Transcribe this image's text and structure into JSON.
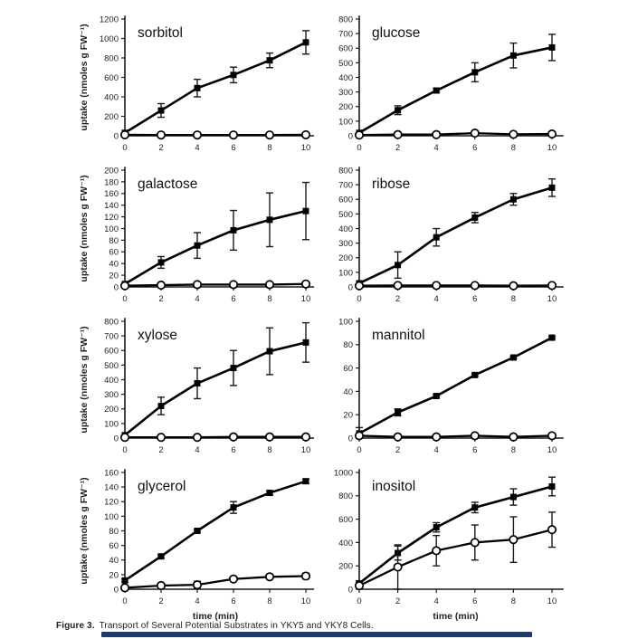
{
  "figure": {
    "caption_label": "Figure 3.",
    "caption_text": "Transport of Several Potential Substrates in YKY5 and YKY8 Cells.",
    "footer_bar_color": "#1e3a6b"
  },
  "axes_common": {
    "x_ticks": [
      0,
      2,
      4,
      6,
      8,
      10
    ],
    "x_max": 10,
    "x_label": "time (min)",
    "y_label": "uptake (nmoles g FW⁻¹)",
    "ink_color": "#1a1a1a"
  },
  "chart_data": [
    {
      "type": "line",
      "title": "sorbitol",
      "grid": false,
      "legend": "none",
      "x": [
        0,
        2,
        4,
        6,
        8,
        10
      ],
      "ylim": [
        0,
        1200
      ],
      "ytick_step": 200,
      "xlabel": "",
      "ylabel": "uptake (nmoles g FW⁻¹)",
      "series": [
        {
          "name": "filled-square",
          "marker": "filled-square",
          "values": [
            30,
            260,
            490,
            625,
            775,
            960
          ],
          "errors": [
            0,
            70,
            90,
            80,
            75,
            120
          ]
        },
        {
          "name": "open-circle",
          "marker": "open-circle",
          "values": [
            10,
            8,
            8,
            8,
            8,
            10
          ],
          "errors": [
            0,
            0,
            0,
            0,
            0,
            0
          ]
        }
      ]
    },
    {
      "type": "line",
      "title": "glucose",
      "grid": false,
      "legend": "none",
      "x": [
        0,
        2,
        4,
        6,
        8,
        10
      ],
      "ylim": [
        0,
        800
      ],
      "ytick_step": 100,
      "xlabel": "",
      "ylabel": "",
      "series": [
        {
          "name": "filled-square",
          "marker": "filled-square",
          "values": [
            20,
            175,
            310,
            435,
            550,
            605
          ],
          "errors": [
            0,
            30,
            15,
            65,
            85,
            90
          ]
        },
        {
          "name": "open-circle",
          "marker": "open-circle",
          "values": [
            5,
            8,
            8,
            18,
            10,
            12
          ],
          "errors": [
            0,
            0,
            0,
            0,
            0,
            0
          ]
        }
      ]
    },
    {
      "type": "line",
      "title": "galactose",
      "grid": false,
      "legend": "none",
      "x": [
        0,
        2,
        4,
        6,
        8,
        10
      ],
      "ylim": [
        0,
        200
      ],
      "ytick_step": 20,
      "xlabel": "",
      "ylabel": "uptake (nmoles g FW⁻¹)",
      "series": [
        {
          "name": "filled-square",
          "marker": "filled-square",
          "values": [
            5,
            42,
            71,
            97,
            115,
            130
          ],
          "errors": [
            0,
            10,
            22,
            34,
            46,
            49
          ]
        },
        {
          "name": "open-circle",
          "marker": "open-circle",
          "values": [
            2,
            3,
            4,
            4,
            4,
            5
          ],
          "errors": [
            0,
            0,
            0,
            0,
            0,
            0
          ]
        }
      ]
    },
    {
      "type": "line",
      "title": "ribose",
      "grid": false,
      "legend": "none",
      "x": [
        0,
        2,
        4,
        6,
        8,
        10
      ],
      "ylim": [
        0,
        800
      ],
      "ytick_step": 100,
      "xlabel": "",
      "ylabel": "",
      "series": [
        {
          "name": "filled-square",
          "marker": "filled-square",
          "values": [
            25,
            150,
            340,
            475,
            600,
            680
          ],
          "errors": [
            0,
            90,
            60,
            35,
            40,
            60
          ]
        },
        {
          "name": "open-circle",
          "marker": "open-circle",
          "values": [
            8,
            10,
            10,
            10,
            8,
            10
          ],
          "errors": [
            0,
            0,
            0,
            0,
            0,
            0
          ]
        }
      ]
    },
    {
      "type": "line",
      "title": "xylose",
      "grid": false,
      "legend": "none",
      "x": [
        0,
        2,
        4,
        6,
        8,
        10
      ],
      "ylim": [
        0,
        800
      ],
      "ytick_step": 100,
      "xlabel": "",
      "ylabel": "uptake (nmoles g FW⁻¹)",
      "series": [
        {
          "name": "filled-square",
          "marker": "filled-square",
          "values": [
            20,
            220,
            375,
            480,
            595,
            655
          ],
          "errors": [
            0,
            60,
            105,
            120,
            160,
            135
          ]
        },
        {
          "name": "open-circle",
          "marker": "open-circle",
          "values": [
            5,
            5,
            5,
            8,
            8,
            8
          ],
          "errors": [
            0,
            0,
            0,
            0,
            0,
            0
          ]
        }
      ]
    },
    {
      "type": "line",
      "title": "mannitol",
      "grid": false,
      "legend": "none",
      "x": [
        0,
        2,
        4,
        6,
        8,
        10
      ],
      "ylim": [
        0,
        100
      ],
      "ytick_step": 20,
      "xlabel": "",
      "ylabel": "",
      "series": [
        {
          "name": "filled-square",
          "marker": "filled-square",
          "values": [
            4,
            22,
            36,
            54,
            69,
            86
          ],
          "errors": [
            5,
            3,
            1,
            1,
            1,
            1
          ]
        },
        {
          "name": "open-circle",
          "marker": "open-circle",
          "values": [
            2,
            1,
            1,
            2,
            1,
            2
          ],
          "errors": [
            0,
            0,
            0,
            0,
            0,
            0
          ]
        }
      ]
    },
    {
      "type": "line",
      "title": "glycerol",
      "grid": false,
      "legend": "none",
      "x": [
        0,
        2,
        4,
        6,
        8,
        10
      ],
      "ylim": [
        0,
        160
      ],
      "ytick_step": 20,
      "xlabel": "time (min)",
      "ylabel": "uptake (nmoles g FW⁻¹)",
      "series": [
        {
          "name": "filled-square",
          "marker": "filled-square",
          "values": [
            12,
            45,
            80,
            112,
            132,
            148
          ],
          "errors": [
            2,
            2,
            2,
            8,
            3,
            3
          ]
        },
        {
          "name": "open-circle",
          "marker": "open-circle",
          "values": [
            2,
            5,
            6,
            14,
            17,
            18
          ],
          "errors": [
            1,
            1,
            5,
            1,
            2,
            4
          ]
        }
      ]
    },
    {
      "type": "line",
      "title": "inositol",
      "grid": false,
      "legend": "none",
      "x": [
        0,
        2,
        4,
        6,
        8,
        10
      ],
      "ylim": [
        0,
        1000
      ],
      "ytick_step": 200,
      "xlabel": "time (min)",
      "ylabel": "",
      "series": [
        {
          "name": "filled-square",
          "marker": "filled-square",
          "values": [
            50,
            310,
            530,
            700,
            790,
            880
          ],
          "errors": [
            20,
            60,
            40,
            45,
            70,
            80
          ]
        },
        {
          "name": "open-circle",
          "marker": "open-circle",
          "values": [
            30,
            190,
            330,
            400,
            425,
            510
          ],
          "errors": [
            25,
            190,
            130,
            150,
            195,
            150
          ]
        }
      ]
    }
  ]
}
